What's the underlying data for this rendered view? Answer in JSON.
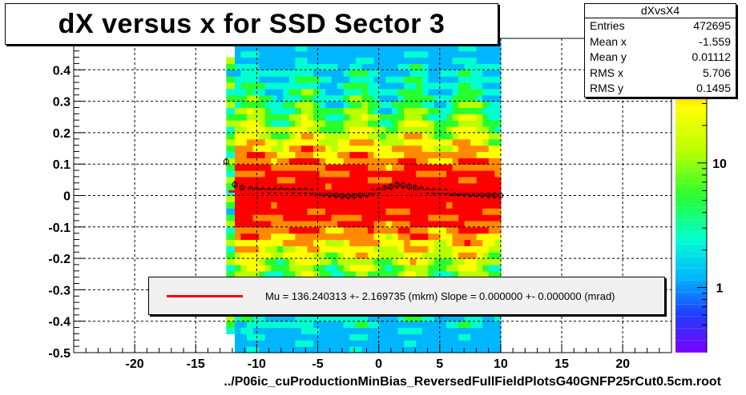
{
  "chart_data": {
    "type": "heatmap",
    "title": "dX versus  x for SSD Sector 3",
    "xlabel": "../P06ic_cuProductionMinBias_ReversedFullFieldPlotsG40GNFP25rCut0.5cm.root",
    "ylabel": "",
    "xlim": [
      -25,
      24
    ],
    "ylim": [
      -0.5,
      0.5
    ],
    "x_ticks": [
      -20,
      -15,
      -10,
      -5,
      0,
      5,
      10,
      15,
      20
    ],
    "y_ticks": [
      -0.5,
      -0.4,
      -0.3,
      -0.2,
      -0.1,
      0,
      0.1,
      0.2,
      0.3,
      0.4
    ],
    "y_tick_labels": [
      "-0.5",
      "-0.4",
      "-0.3",
      "-0.2",
      "-0.1",
      "0",
      "0.1",
      "0.2",
      "0.3",
      "0.4"
    ],
    "grid": true,
    "color_scale": "log",
    "color_ticks": [
      {
        "value": 1,
        "label": "1"
      },
      {
        "value": 10,
        "label": "10"
      }
    ],
    "profile_points": [
      {
        "x": -12.5,
        "y": 0.108
      },
      {
        "x": -11.8,
        "y": 0.035
      },
      {
        "x": -11.2,
        "y": 0.025
      },
      {
        "x": -10.5,
        "y": 0.02
      },
      {
        "x": -10.0,
        "y": 0.018
      },
      {
        "x": -9.5,
        "y": 0.016
      },
      {
        "x": -9.0,
        "y": 0.015
      },
      {
        "x": -8.5,
        "y": 0.016
      },
      {
        "x": -8.0,
        "y": 0.017
      },
      {
        "x": -7.5,
        "y": 0.016
      },
      {
        "x": -7.0,
        "y": 0.015
      },
      {
        "x": -6.5,
        "y": 0.014
      },
      {
        "x": -6.0,
        "y": 0.015
      },
      {
        "x": -5.5,
        "y": 0.012
      },
      {
        "x": -5.0,
        "y": 0.01
      },
      {
        "x": -4.5,
        "y": 0.006
      },
      {
        "x": -4.0,
        "y": 0.003
      },
      {
        "x": -3.5,
        "y": 0.001
      },
      {
        "x": -3.0,
        "y": -0.001
      },
      {
        "x": -2.5,
        "y": -0.002
      },
      {
        "x": -2.0,
        "y": -0.001
      },
      {
        "x": -1.5,
        "y": 0.002
      },
      {
        "x": -1.0,
        "y": 0.005
      },
      {
        "x": -0.5,
        "y": 0.01
      },
      {
        "x": 0.0,
        "y": 0.015
      },
      {
        "x": 0.5,
        "y": 0.022
      },
      {
        "x": 1.0,
        "y": 0.028
      },
      {
        "x": 1.5,
        "y": 0.033
      },
      {
        "x": 2.0,
        "y": 0.032
      },
      {
        "x": 2.5,
        "y": 0.028
      },
      {
        "x": 3.0,
        "y": 0.024
      },
      {
        "x": 3.5,
        "y": 0.019
      },
      {
        "x": 4.0,
        "y": 0.015
      },
      {
        "x": 4.5,
        "y": 0.013
      },
      {
        "x": 5.0,
        "y": 0.012
      },
      {
        "x": 5.5,
        "y": 0.011
      },
      {
        "x": 6.0,
        "y": 0.009
      },
      {
        "x": 6.5,
        "y": 0.008
      },
      {
        "x": 7.0,
        "y": 0.006
      },
      {
        "x": 7.5,
        "y": 0.005
      },
      {
        "x": 8.0,
        "y": 0.004
      },
      {
        "x": 8.5,
        "y": 0.003
      },
      {
        "x": 9.0,
        "y": 0.002
      },
      {
        "x": 9.5,
        "y": 0.001
      },
      {
        "x": 10.0,
        "y": 0.0
      }
    ],
    "fit_line": {
      "x": [
        -12.3,
        10.0
      ],
      "y": [
        0.013,
        0.013
      ]
    },
    "legend": {
      "entry": "Mu = 136.240313 +- 2.169735 (mkm) Slope = 0.000000 +- 0.000000 (mrad)",
      "color": "#ff0000"
    },
    "stats_box": {
      "title": "dXvsX4",
      "rows": [
        {
          "label": "Entries",
          "value": "472695"
        },
        {
          "label": "Mean x",
          "value": "-1.559"
        },
        {
          "label": "Mean y",
          "value": "0.01112"
        },
        {
          "label": "RMS x",
          "value": "5.706"
        },
        {
          "label": "RMS y",
          "value": "0.1495"
        }
      ]
    }
  }
}
